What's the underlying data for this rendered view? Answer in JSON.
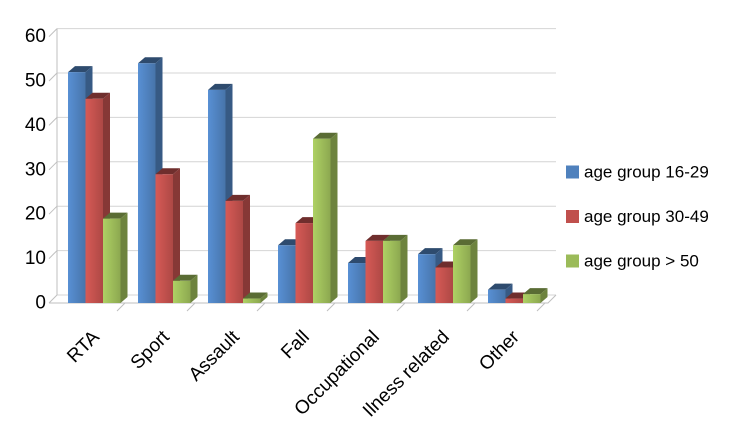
{
  "figure": {
    "background": "#ffffff",
    "grid_color": "#d4d4d4",
    "axis_color": "#bfbfbf",
    "text_color": "#000000"
  },
  "chart_data": {
    "type": "bar",
    "style": "3d-clustered-column",
    "title": "",
    "xlabel": "",
    "ylabel": "",
    "categories": [
      "RTA",
      "Sport",
      "Assault",
      "Fall",
      "Occupational",
      "Ilness related",
      "Other"
    ],
    "series": [
      {
        "name": "age group 16-29",
        "color": "#4F81BD",
        "values": [
          52,
          54,
          48,
          13,
          9,
          11,
          3
        ]
      },
      {
        "name": "age group 30-49",
        "color": "#C0504D",
        "values": [
          46,
          29,
          23,
          18,
          14,
          8,
          1
        ]
      },
      {
        "name": "age group > 50",
        "color": "#9BBB59",
        "values": [
          19,
          5,
          1,
          37,
          14,
          13,
          2
        ]
      }
    ],
    "ylim": [
      0,
      60
    ],
    "yticks": [
      0,
      10,
      20,
      30,
      40,
      50,
      60
    ],
    "grid": true,
    "legend_position": "right"
  }
}
